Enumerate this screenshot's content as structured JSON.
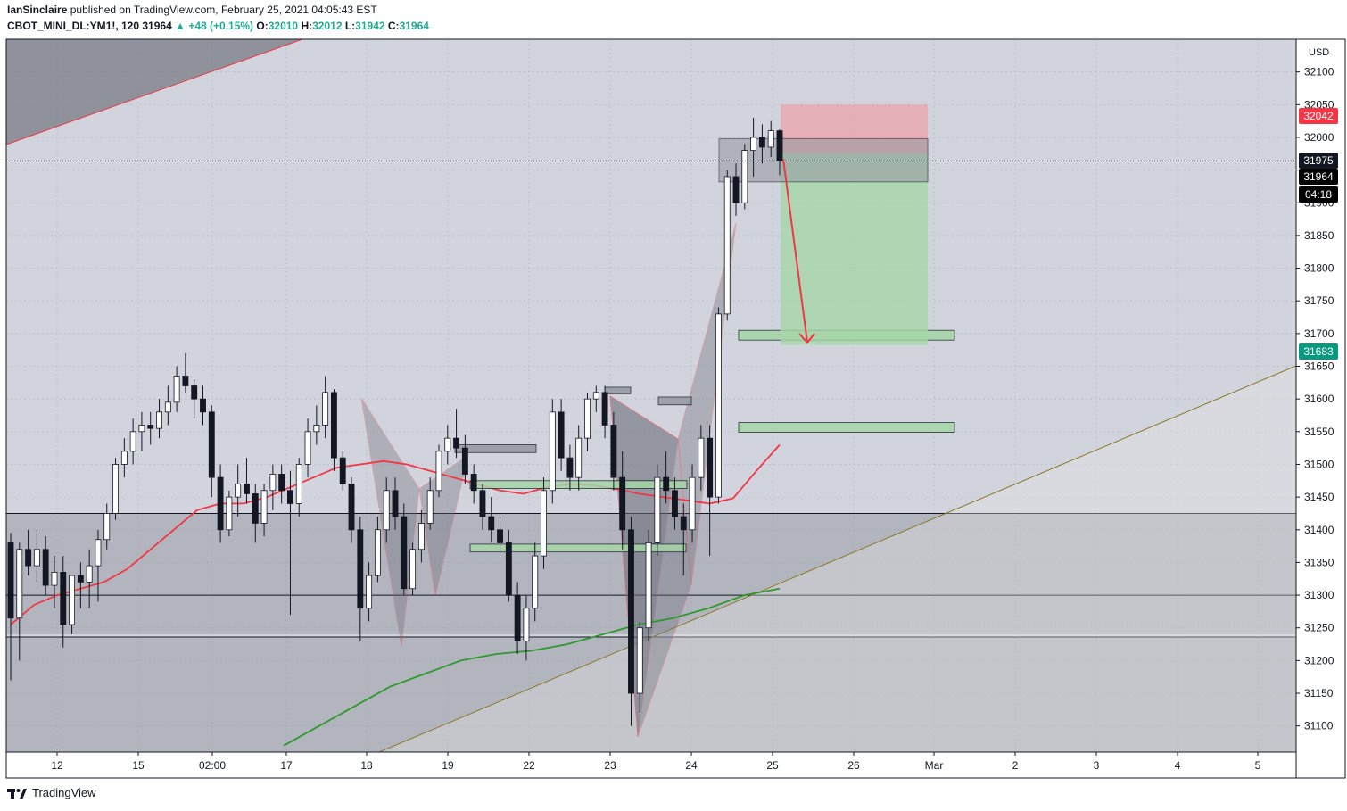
{
  "header": {
    "author": "IanSinclaire",
    "published": "published on TradingView.com, February 25, 2021 04:05:43 EST",
    "symbol": "CBOT_MINI_DL:YM1!, 120",
    "last": "31964",
    "arrow": "▲",
    "change": "+48 (+0.15%)",
    "o_label": "O:",
    "o": "32010",
    "h_label": "H:",
    "h": "32012",
    "l_label": "L:",
    "l": "31942",
    "c_label": "C:",
    "c": "31964"
  },
  "footer": {
    "brand": "TradingView"
  },
  "colors": {
    "background": "#d1d4dc",
    "up": "#ffffff",
    "down": "#131722",
    "ema_red": "#f23645",
    "ema_green": "#2e9a2e",
    "target_zone": "#a5d6a7",
    "stop_zone": "#e8a5ad",
    "trendline": "#8d7a2a"
  },
  "chart_data": {
    "type": "candlestick",
    "y_axis": {
      "unit": "USD",
      "min": 31060,
      "max": 32150,
      "ticks": [
        31100,
        31150,
        31200,
        31250,
        31300,
        31350,
        31400,
        31450,
        31500,
        31550,
        31600,
        31650,
        31700,
        31750,
        31800,
        31850,
        31900,
        31950,
        32000,
        32050,
        32100
      ]
    },
    "x_axis": {
      "ticks": [
        "12",
        "15",
        "02:00",
        "17",
        "18",
        "19",
        "22",
        "23",
        "24",
        "25",
        "26",
        "Mar",
        "2",
        "3",
        "4",
        "5"
      ]
    },
    "price_labels": [
      {
        "value": "32042",
        "role": "stop",
        "color": "#f23645"
      },
      {
        "value": "31975",
        "role": "entry",
        "color": "#131722"
      },
      {
        "value": "31964",
        "role": "last",
        "color": "#000000"
      },
      {
        "value": "04:18",
        "role": "countdown",
        "color": "#000000"
      },
      {
        "value": "31683",
        "role": "target",
        "color": "#089981"
      }
    ],
    "candles": [
      [
        31380,
        31395,
        31170,
        31265
      ],
      [
        31265,
        31380,
        31200,
        31370
      ],
      [
        31370,
        31400,
        31330,
        31345
      ],
      [
        31345,
        31400,
        31320,
        31370
      ],
      [
        31370,
        31390,
        31300,
        31315
      ],
      [
        31315,
        31360,
        31280,
        31335
      ],
      [
        31335,
        31360,
        31220,
        31255
      ],
      [
        31255,
        31330,
        31240,
        31330
      ],
      [
        31330,
        31350,
        31280,
        31320
      ],
      [
        31320,
        31370,
        31280,
        31345
      ],
      [
        31345,
        31400,
        31290,
        31385
      ],
      [
        31385,
        31440,
        31370,
        31425
      ],
      [
        31425,
        31510,
        31415,
        31500
      ],
      [
        31500,
        31540,
        31480,
        31520
      ],
      [
        31520,
        31570,
        31500,
        31550
      ],
      [
        31550,
        31580,
        31520,
        31560
      ],
      [
        31560,
        31580,
        31530,
        31555
      ],
      [
        31555,
        31600,
        31540,
        31580
      ],
      [
        31580,
        31620,
        31560,
        31595
      ],
      [
        31595,
        31650,
        31580,
        31635
      ],
      [
        31635,
        31670,
        31610,
        31620
      ],
      [
        31620,
        31630,
        31570,
        31600
      ],
      [
        31600,
        31620,
        31560,
        31580
      ],
      [
        31580,
        31590,
        31450,
        31480
      ],
      [
        31480,
        31500,
        31380,
        31400
      ],
      [
        31400,
        31460,
        31390,
        31450
      ],
      [
        31450,
        31500,
        31420,
        31470
      ],
      [
        31470,
        31510,
        31440,
        31455
      ],
      [
        31455,
        31470,
        31380,
        31410
      ],
      [
        31410,
        31470,
        31390,
        31460
      ],
      [
        31460,
        31500,
        31430,
        31485
      ],
      [
        31485,
        31500,
        31440,
        31460
      ],
      [
        31460,
        31490,
        31270,
        31440
      ],
      [
        31440,
        31510,
        31420,
        31500
      ],
      [
        31500,
        31570,
        31480,
        31550
      ],
      [
        31550,
        31590,
        31530,
        31560
      ],
      [
        31560,
        31635,
        31540,
        31610
      ],
      [
        31610,
        31615,
        31490,
        31510
      ],
      [
        31510,
        31520,
        31460,
        31470
      ],
      [
        31470,
        31480,
        31380,
        31400
      ],
      [
        31400,
        31420,
        31230,
        31280
      ],
      [
        31280,
        31350,
        31260,
        31330
      ],
      [
        31330,
        31420,
        31320,
        31400
      ],
      [
        31400,
        31480,
        31380,
        31460
      ],
      [
        31460,
        31480,
        31400,
        31420
      ],
      [
        31420,
        31440,
        31300,
        31310
      ],
      [
        31310,
        31380,
        31300,
        31370
      ],
      [
        31370,
        31430,
        31350,
        31410
      ],
      [
        31410,
        31480,
        31400,
        31460
      ],
      [
        31460,
        31530,
        31450,
        31520
      ],
      [
        31520,
        31560,
        31500,
        31540
      ],
      [
        31540,
        31585,
        31510,
        31525
      ],
      [
        31525,
        31545,
        31470,
        31485
      ],
      [
        31485,
        31500,
        31440,
        31460
      ],
      [
        31460,
        31470,
        31400,
        31420
      ],
      [
        31420,
        31450,
        31380,
        31400
      ],
      [
        31400,
        31420,
        31360,
        31380
      ],
      [
        31380,
        31400,
        31290,
        31300
      ],
      [
        31300,
        31320,
        31210,
        31230
      ],
      [
        31230,
        31300,
        31200,
        31280
      ],
      [
        31280,
        31380,
        31260,
        31360
      ],
      [
        31360,
        31480,
        31340,
        31460
      ],
      [
        31460,
        31600,
        31440,
        31580
      ],
      [
        31580,
        31600,
        31490,
        31510
      ],
      [
        31510,
        31530,
        31460,
        31480
      ],
      [
        31480,
        31560,
        31460,
        31540
      ],
      [
        31540,
        31610,
        31520,
        31600
      ],
      [
        31600,
        31620,
        31580,
        31610
      ],
      [
        31610,
        31620,
        31540,
        31560
      ],
      [
        31560,
        31580,
        31460,
        31480
      ],
      [
        31480,
        31520,
        31370,
        31400
      ],
      [
        31400,
        31420,
        31100,
        31150
      ],
      [
        31150,
        31260,
        31120,
        31250
      ],
      [
        31250,
        31400,
        31230,
        31380
      ],
      [
        31380,
        31500,
        31360,
        31480
      ],
      [
        31480,
        31520,
        31440,
        31460
      ],
      [
        31460,
        31480,
        31400,
        31420
      ],
      [
        31420,
        31440,
        31330,
        31400
      ],
      [
        31400,
        31500,
        31380,
        31480
      ],
      [
        31480,
        31560,
        31460,
        31540
      ],
      [
        31540,
        31560,
        31360,
        31450
      ],
      [
        31450,
        31740,
        31440,
        31730
      ],
      [
        31730,
        31950,
        31720,
        31940
      ],
      [
        31940,
        31960,
        31880,
        31900
      ],
      [
        31900,
        31990,
        31890,
        31980
      ],
      [
        31980,
        32030,
        31940,
        32000
      ],
      [
        32000,
        32020,
        31960,
        31985
      ],
      [
        31985,
        32025,
        31970,
        32010
      ],
      [
        32010,
        32012,
        31942,
        31964
      ]
    ],
    "ema_fast_red": [
      31255,
      31285,
      31300,
      31310,
      31320,
      31340,
      31370,
      31400,
      31430,
      31440,
      31440,
      31450,
      31465,
      31480,
      31495,
      31500,
      31505,
      31500,
      31490,
      31480,
      31470,
      31460,
      31455,
      31465,
      31470,
      31468,
      31462,
      31455,
      31450,
      31445,
      31440,
      31448,
      31490,
      31530
    ],
    "ema_slow_green": [
      31070,
      31100,
      31130,
      31160,
      31180,
      31200,
      31210,
      31215,
      31225,
      31240,
      31255,
      31265,
      31280,
      31300,
      31310
    ],
    "support_zones": [
      {
        "from": 31240,
        "to": 31300
      },
      {
        "from": 31300,
        "to": 31425
      }
    ],
    "horizontal_lines": [
      31425,
      31300,
      31236
    ],
    "position": {
      "entry": 31975,
      "stop": 32042,
      "target": 31683
    }
  }
}
